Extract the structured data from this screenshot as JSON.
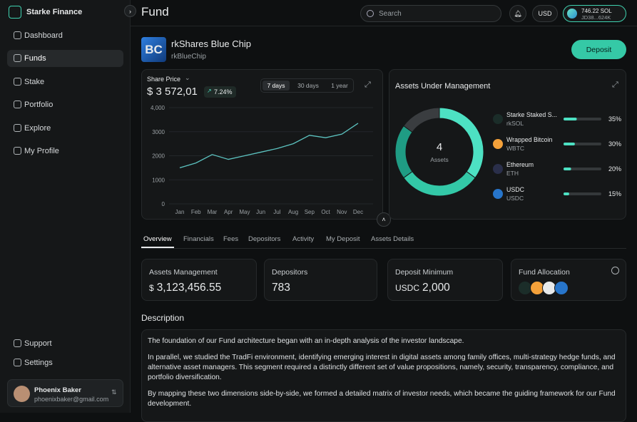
{
  "sidebar": {
    "brand": "Starke Finance",
    "nav": [
      "Dashboard",
      "Funds",
      "Stake",
      "Portfolio",
      "Explore",
      "My Profile"
    ],
    "footer_nav": [
      "Support",
      "Settings"
    ],
    "user": {
      "name": "Phoenix Baker",
      "email": "phoenixbaker@gmail.com"
    }
  },
  "header": {
    "title": "Fund",
    "search_placeholder": "Search",
    "currency": "USD",
    "wallet_balance": "746.22 SOL",
    "wallet_address": "JD38...624K"
  },
  "fund": {
    "logo": "BC",
    "name": "rkShares Blue Chip",
    "ticker": "rkBlueChip",
    "action": "Deposit"
  },
  "chart_data": [
    {
      "type": "line",
      "title": "Share Price",
      "headline": "$ 3 572,01",
      "change": "7.24%",
      "ranges": [
        "7 days",
        "30 days",
        "1 year"
      ],
      "categories": [
        "Jan",
        "Feb",
        "Mar",
        "Apr",
        "May",
        "Jun",
        "Jul",
        "Aug",
        "Sep",
        "Oct",
        "Nov",
        "Dec"
      ],
      "values": [
        1500,
        1700,
        2050,
        1850,
        2000,
        2150,
        2300,
        2500,
        2850,
        2750,
        2900,
        3350
      ],
      "color": "#5cc3c0",
      "ylim": [
        0,
        4000
      ],
      "yticks": [
        0,
        1000,
        2000,
        3000,
        {
          "value": 4000,
          "label": "4,000"
        }
      ],
      "grid": true
    },
    {
      "type": "donut",
      "title": "Assets Under Management",
      "center_value": "4",
      "center_label": "Assets",
      "categories": [
        "Starke Staked S...",
        "Wrapped Bitcoin",
        "Ethereum",
        "USDC"
      ],
      "tickers": [
        "rkSOL",
        "WBTC",
        "ETH",
        "USDC"
      ],
      "values": [
        35,
        30,
        20,
        15
      ],
      "value_labels": [
        "35%",
        "30%",
        "20%",
        "15%"
      ],
      "colors": [
        "#4de1c3",
        "#33c8a7",
        "#1f9c84",
        "#3a3d40"
      ]
    }
  ],
  "tabs": [
    "Overview",
    "Financials",
    "Fees",
    "Depositors",
    "Activity",
    "My Deposit",
    "Assets Details"
  ],
  "stats": [
    {
      "label": "Assets Management",
      "unit": "$",
      "value": "3,123,456.55"
    },
    {
      "label": "Depositors",
      "value": "783"
    },
    {
      "label": "Deposit Minimum",
      "unit": "USDC",
      "value": "2,000"
    },
    {
      "label": "Fund Allocation"
    }
  ],
  "description": {
    "title": "Description",
    "paragraphs": [
      "The foundation of our Fund architecture began with an in-depth analysis of the investor landscape.",
      "In parallel, we studied the TradFi environment, identifying emerging interest in digital assets among family offices, multi-strategy hedge funds, and alternative asset managers. This segment required a distinctly different set of value propositions, namely, security, transparency, compliance, and portfolio diversification.",
      "By mapping these two dimensions side-by-side, we formed a detailed matrix of investor needs, which became the guiding framework for our Fund development."
    ]
  }
}
